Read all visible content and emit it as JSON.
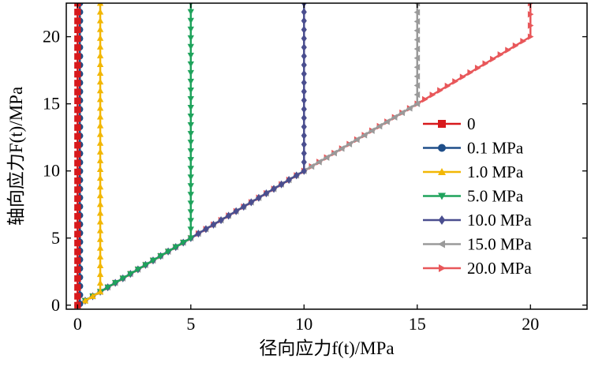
{
  "chart_data": {
    "type": "line",
    "xlabel": "径向应力f(t)/MPa",
    "ylabel": "轴向应力F(t)/MPa",
    "xlim": [
      -0.5,
      22.5
    ],
    "ylim": [
      -0.3,
      22.5
    ],
    "xticks": [
      0,
      5,
      10,
      15,
      20
    ],
    "yticks": [
      0,
      5,
      10,
      15,
      20
    ],
    "legend_position": "lower-right",
    "series": [
      {
        "name": "0",
        "color": "#d7191c",
        "marker": "square",
        "x": [
          0,
          0
        ],
        "y": [
          0,
          22.5
        ]
      },
      {
        "name": "0.1 MPa",
        "color": "#1f4e89",
        "marker": "circle",
        "x": [
          0,
          0.1,
          0.1
        ],
        "y": [
          0,
          0.1,
          22.5
        ]
      },
      {
        "name": "1.0 MPa",
        "color": "#f2b705",
        "marker": "triangle-up",
        "x": [
          0,
          1,
          1
        ],
        "y": [
          0,
          1,
          22.5
        ]
      },
      {
        "name": "5.0 MPa",
        "color": "#1fa35c",
        "marker": "triangle-down",
        "x": [
          0,
          5,
          5
        ],
        "y": [
          0,
          5,
          22.5
        ]
      },
      {
        "name": "10.0 MPa",
        "color": "#4a4e8f",
        "marker": "diamond",
        "x": [
          0,
          10,
          10
        ],
        "y": [
          0,
          10,
          22.5
        ]
      },
      {
        "name": "15.0 MPa",
        "color": "#9a9a9a",
        "marker": "triangle-left",
        "x": [
          0,
          15,
          15
        ],
        "y": [
          0,
          15,
          22.5
        ]
      },
      {
        "name": "20.0 MPa",
        "color": "#e8575a",
        "marker": "triangle-right",
        "x": [
          0,
          20,
          20
        ],
        "y": [
          0,
          20,
          22.5
        ]
      }
    ]
  }
}
